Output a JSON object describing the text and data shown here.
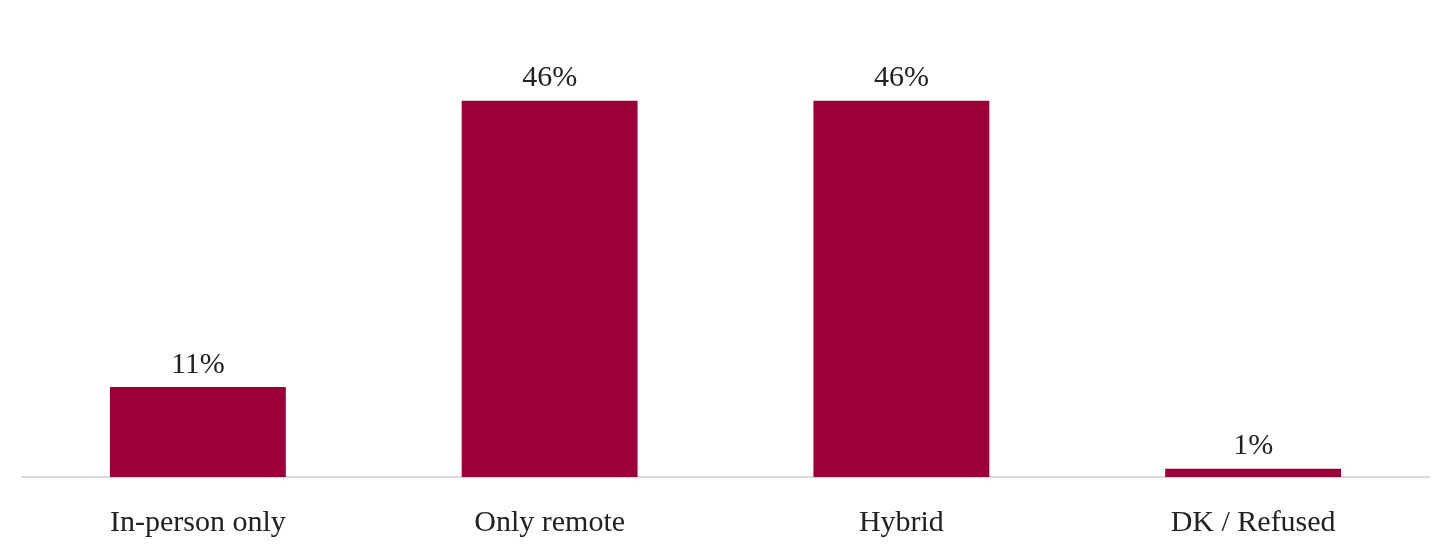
{
  "chart_data": {
    "type": "bar",
    "categories": [
      "In-person only",
      "Only remote",
      "Hybrid",
      "DK / Refused"
    ],
    "values": [
      11,
      46,
      46,
      1
    ],
    "value_labels": [
      "11%",
      "46%",
      "46%",
      "1%"
    ],
    "color": "#9b0038"
  }
}
